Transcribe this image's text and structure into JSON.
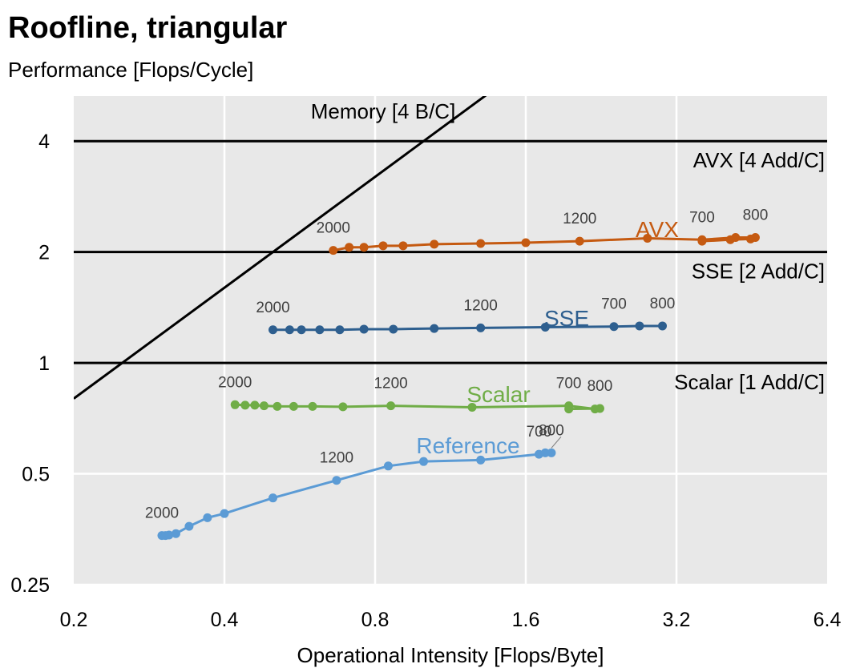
{
  "chart_data": {
    "type": "line",
    "title": "Roofline, triangular",
    "ylabel": "Performance [Flops/Cycle]",
    "xlabel": "Operational Intensity [Flops/Byte]",
    "x_scale": "log2",
    "y_scale": "log2",
    "xlim": [
      0.2,
      6.4
    ],
    "ylim": [
      0.25,
      5.3
    ],
    "x_ticks": [
      "0.2",
      "0.4",
      "0.8",
      "1.6",
      "3.2",
      "6.4"
    ],
    "x_tick_values": [
      0.2,
      0.4,
      0.8,
      1.6,
      3.2,
      6.4
    ],
    "y_ticks": [
      "0.25",
      "0.5",
      "1",
      "2",
      "4"
    ],
    "y_tick_values": [
      0.25,
      0.5,
      1,
      2,
      4
    ],
    "grid": true,
    "legend": "none",
    "plot_background": "#e8e8e8",
    "roofs": [
      {
        "label": "Memory [4 B/C]",
        "kind": "bandwidth",
        "bytes_per_cycle": 4,
        "color": "#000000"
      },
      {
        "label": "AVX [4 Add/C]",
        "kind": "peak",
        "value": 4,
        "color": "#000000"
      },
      {
        "label": "SSE [2 Add/C]",
        "kind": "peak",
        "value": 2,
        "color": "#000000"
      },
      {
        "label": "Scalar [1 Add/C]",
        "kind": "peak",
        "value": 1,
        "color": "#000000"
      }
    ],
    "series": [
      {
        "name": "AVX",
        "color": "#c55a11",
        "x": [
          0.66,
          0.71,
          0.76,
          0.83,
          0.91,
          1.05,
          1.3,
          1.6,
          2.05,
          2.8,
          3.6,
          4.2,
          4.6,
          4.5,
          4.1,
          3.6
        ],
        "y": [
          2.02,
          2.06,
          2.06,
          2.08,
          2.08,
          2.1,
          2.11,
          2.12,
          2.14,
          2.18,
          2.16,
          2.19,
          2.19,
          2.17,
          2.16,
          2.14
        ],
        "point_labels": [
          {
            "text": "2000",
            "index": 0
          },
          {
            "text": "1200",
            "index": 8
          },
          {
            "text": "700",
            "index": 10
          },
          {
            "text": "800",
            "index": 12
          }
        ]
      },
      {
        "name": "SSE",
        "color": "#2e5f8f",
        "x": [
          0.5,
          0.54,
          0.57,
          0.62,
          0.68,
          0.76,
          0.87,
          1.05,
          1.3,
          1.75,
          2.4,
          2.7,
          3.0
        ],
        "y": [
          1.23,
          1.23,
          1.23,
          1.23,
          1.23,
          1.235,
          1.235,
          1.24,
          1.245,
          1.25,
          1.255,
          1.26,
          1.26
        ],
        "point_labels": [
          {
            "text": "2000",
            "index": 0
          },
          {
            "text": "1200",
            "index": 8
          },
          {
            "text": "700",
            "index": 10
          },
          {
            "text": "800",
            "index": 12
          }
        ]
      },
      {
        "name": "Scalar",
        "color": "#70ad47",
        "x": [
          0.42,
          0.44,
          0.46,
          0.48,
          0.51,
          0.55,
          0.6,
          0.69,
          0.86,
          1.25,
          1.95,
          2.2,
          2.25,
          1.95
        ],
        "y": [
          0.77,
          0.768,
          0.768,
          0.765,
          0.762,
          0.762,
          0.762,
          0.76,
          0.765,
          0.758,
          0.765,
          0.75,
          0.752,
          0.75
        ],
        "point_labels": [
          {
            "text": "2000",
            "index": 0
          },
          {
            "text": "1200",
            "index": 8
          },
          {
            "text": "700",
            "index": 10
          },
          {
            "text": "800",
            "index": 12
          }
        ]
      },
      {
        "name": "Reference",
        "color": "#5b9bd5",
        "x": [
          0.3,
          0.305,
          0.31,
          0.32,
          0.34,
          0.37,
          0.4,
          0.5,
          0.67,
          0.85,
          1.0,
          1.3,
          1.7,
          1.75,
          1.8
        ],
        "y": [
          0.34,
          0.34,
          0.341,
          0.344,
          0.36,
          0.38,
          0.39,
          0.43,
          0.48,
          0.525,
          0.54,
          0.545,
          0.565,
          0.57,
          0.57
        ],
        "point_labels": [
          {
            "text": "2000",
            "index": 0
          },
          {
            "text": "1200",
            "index": 8
          },
          {
            "text": "700",
            "index": 12
          },
          {
            "text": "800",
            "index": 14
          }
        ]
      }
    ]
  }
}
